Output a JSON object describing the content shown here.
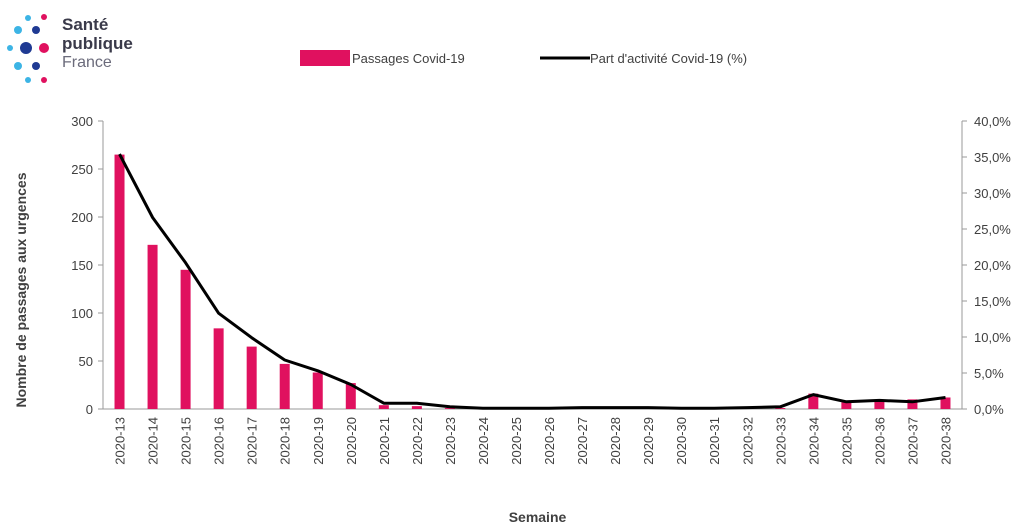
{
  "logo": {
    "line1": "Santé",
    "line2": "publique",
    "line3": "France",
    "colors": {
      "navy": "#1f3a93",
      "pink": "#e0115f",
      "cyan": "#3cb4e5"
    }
  },
  "chart_data": {
    "type": "bar",
    "title": "",
    "xlabel": "Semaine",
    "ylabel": "Nombre de passages  aux urgences",
    "ylim": [
      0,
      300
    ],
    "y2lim": [
      0,
      40
    ],
    "yticks": [
      "0",
      "50",
      "100",
      "150",
      "200",
      "250",
      "300"
    ],
    "y2ticks": [
      "0,0%",
      "5,0%",
      "10,0%",
      "15,0%",
      "20,0%",
      "25,0%",
      "30,0%",
      "35,0%",
      "40,0%"
    ],
    "legend_position": "top-center",
    "grid": false,
    "categories": [
      "2020-13",
      "2020-14",
      "2020-15",
      "2020-16",
      "2020-17",
      "2020-18",
      "2020-19",
      "2020-20",
      "2020-21",
      "2020-22",
      "2020-23",
      "2020-24",
      "2020-25",
      "2020-26",
      "2020-27",
      "2020-28",
      "2020-29",
      "2020-30",
      "2020-31",
      "2020-32",
      "2020-33",
      "2020-34",
      "2020-35",
      "2020-36",
      "2020-37",
      "2020-38"
    ],
    "series": [
      {
        "name": "Passages Covid-19",
        "type": "bar",
        "axis": "left",
        "color": "#e0115f",
        "values": [
          265,
          171,
          145,
          84,
          65,
          47,
          38,
          27,
          4,
          3,
          1,
          0,
          0,
          0,
          1,
          0,
          0,
          0,
          0,
          1,
          1,
          16,
          7,
          9,
          10,
          12
        ]
      },
      {
        "name": "Part d'activité Covid-19 (%)",
        "type": "line",
        "axis": "right",
        "color": "#000000",
        "values": [
          35.4,
          26.6,
          20.3,
          13.3,
          9.9,
          6.8,
          5.3,
          3.4,
          0.8,
          0.8,
          0.3,
          0.1,
          0.1,
          0.1,
          0.2,
          0.2,
          0.2,
          0.1,
          0.1,
          0.2,
          0.3,
          2.0,
          1.0,
          1.2,
          1.0,
          1.6
        ]
      }
    ]
  }
}
